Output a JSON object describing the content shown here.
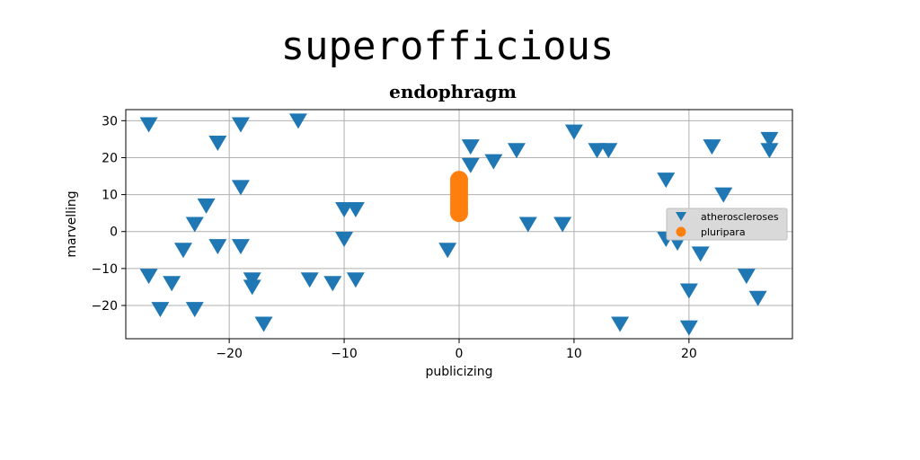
{
  "chart_data": {
    "type": "scatter",
    "suptitle": "superofficious",
    "title": "endophragm",
    "xlabel": "publicizing",
    "ylabel": "marvelling",
    "xlim": [
      -29,
      29
    ],
    "ylim": [
      -29,
      33
    ],
    "xticks": [
      -20,
      -10,
      0,
      10,
      20
    ],
    "yticks": [
      -20,
      -10,
      0,
      10,
      20,
      30
    ],
    "grid": true,
    "legend_position": "center-right",
    "series": [
      {
        "name": "atheroscleroses",
        "marker": "triangle-down",
        "color": "#1f77b4",
        "points": [
          [
            -27,
            29
          ],
          [
            -19,
            29
          ],
          [
            -14,
            30
          ],
          [
            -21,
            24
          ],
          [
            -19,
            12
          ],
          [
            -22,
            7
          ],
          [
            -23,
            2
          ],
          [
            -24,
            -5
          ],
          [
            -21,
            -4
          ],
          [
            -19,
            -4
          ],
          [
            -27,
            -12
          ],
          [
            -25,
            -14
          ],
          [
            -26,
            -21
          ],
          [
            -23,
            -21
          ],
          [
            -18,
            -13
          ],
          [
            -18,
            -15
          ],
          [
            -17,
            -25
          ],
          [
            -13,
            -13
          ],
          [
            -11,
            -14
          ],
          [
            -9,
            -13
          ],
          [
            -10,
            6
          ],
          [
            -9,
            6
          ],
          [
            -10,
            -2
          ],
          [
            -1,
            -5
          ],
          [
            1,
            23
          ],
          [
            1,
            18
          ],
          [
            3,
            19
          ],
          [
            5,
            22
          ],
          [
            6,
            2
          ],
          [
            9,
            2
          ],
          [
            10,
            27
          ],
          [
            12,
            22
          ],
          [
            13,
            22
          ],
          [
            14,
            -25
          ],
          [
            18,
            14
          ],
          [
            18,
            -2
          ],
          [
            19,
            -3
          ],
          [
            20,
            -16
          ],
          [
            20,
            -26
          ],
          [
            21,
            -6
          ],
          [
            22,
            23
          ],
          [
            23,
            10
          ],
          [
            25,
            -12
          ],
          [
            26,
            -18
          ],
          [
            27,
            25
          ],
          [
            27,
            22
          ]
        ]
      },
      {
        "name": "pluripara",
        "marker": "circle",
        "color": "#ff7f0e",
        "points": [
          [
            0,
            14
          ],
          [
            0,
            13
          ],
          [
            0,
            12
          ],
          [
            0,
            11
          ],
          [
            0,
            10
          ],
          [
            0,
            9
          ],
          [
            0,
            8
          ],
          [
            0,
            7
          ],
          [
            0,
            6
          ],
          [
            0,
            5
          ]
        ]
      }
    ]
  }
}
